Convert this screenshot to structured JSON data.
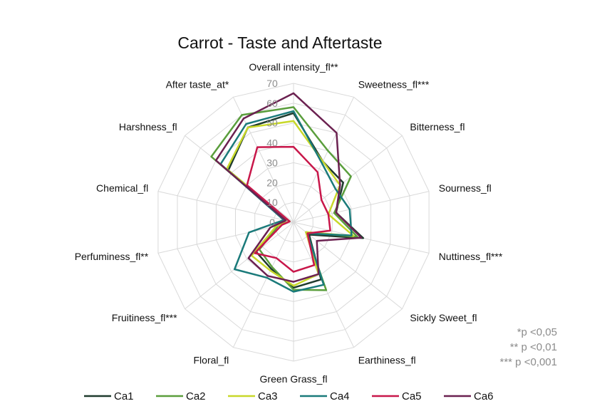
{
  "chart_data": {
    "type": "radar",
    "title": "Carrot - Taste and Aftertaste",
    "axes": [
      "Overall intensity_fl**",
      "Sweetness_fl***",
      "Bitterness_fl",
      "Sourness_fl",
      "Nuttiness_fl***",
      "Sickly Sweet_fl",
      "Earthiness_fl",
      "Green Grass_fl",
      "Floral_fl",
      "Fruitiness_fl***",
      "Perfuminess_fl**",
      "Chemical_fl",
      "Harshness_fl",
      "After taste_at*"
    ],
    "range": [
      0,
      70
    ],
    "ticks": [
      0,
      10,
      20,
      30,
      40,
      50,
      60,
      70
    ],
    "grid": true,
    "legend_position": "bottom",
    "series": [
      {
        "name": "Ca1",
        "color": "#1f3b2d",
        "values": [
          55,
          34,
          32,
          22,
          36,
          10,
          32,
          33,
          26,
          24,
          8,
          2,
          42,
          53
        ]
      },
      {
        "name": "Ca2",
        "color": "#5a9e3c",
        "values": [
          58,
          40,
          37,
          21,
          33,
          8,
          38,
          34,
          25,
          22,
          8,
          4,
          53,
          60
        ]
      },
      {
        "name": "Ca3",
        "color": "#c8d82a",
        "values": [
          51,
          34,
          30,
          18,
          31,
          8,
          29,
          32,
          27,
          27,
          9,
          2,
          43,
          53
        ]
      },
      {
        "name": "Ca4",
        "color": "#1a7a7a",
        "values": [
          56,
          33,
          27,
          29,
          30,
          9,
          35,
          35,
          31,
          38,
          23,
          5,
          47,
          55
        ]
      },
      {
        "name": "Ca5",
        "color": "#c8174a",
        "values": [
          38,
          28,
          18,
          18,
          19,
          9,
          24,
          25,
          20,
          25,
          6,
          2,
          30,
          42
        ]
      },
      {
        "name": "Ca6",
        "color": "#6b2150",
        "values": [
          65,
          50,
          30,
          22,
          35,
          15,
          29,
          30,
          30,
          29,
          12,
          4,
          50,
          58
        ]
      }
    ],
    "notes": [
      "*p <0,05",
      "** p <0,01",
      "*** p <0,001"
    ]
  }
}
